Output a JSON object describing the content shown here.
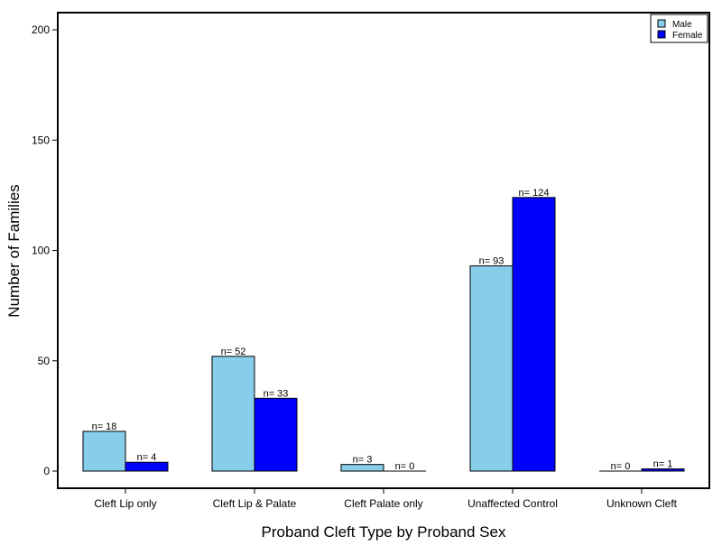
{
  "chart_data": {
    "type": "bar",
    "title": "",
    "xlabel": "Proband Cleft Type by Proband Sex",
    "ylabel": "Number of Families",
    "categories": [
      "Cleft Lip only",
      "Cleft Lip & Palate",
      "Cleft Palate only",
      "Unaffected Control",
      "Unknown Cleft"
    ],
    "series": [
      {
        "name": "Male",
        "color": "#87ceeb",
        "values": [
          18,
          52,
          3,
          93,
          0
        ],
        "labels": [
          "n= 18",
          "n= 52",
          "n= 3",
          "n= 93",
          "n= 0"
        ]
      },
      {
        "name": "Female",
        "color": "#0000ff",
        "values": [
          4,
          33,
          0,
          124,
          1
        ],
        "labels": [
          "n= 4",
          "n= 33",
          "n= 0",
          "n= 124",
          "n= 1"
        ]
      }
    ],
    "ylim": [
      0,
      210
    ],
    "yticks": [
      0,
      50,
      100,
      150,
      200
    ],
    "ytick_labels": [
      "0",
      "50",
      "100",
      "150",
      "200"
    ],
    "legend_position": "top-right",
    "grid": false
  }
}
